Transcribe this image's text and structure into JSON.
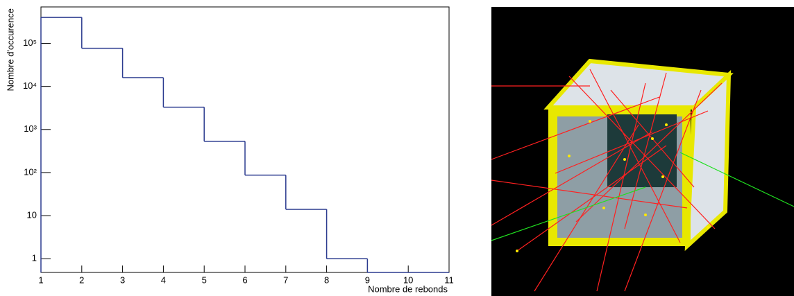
{
  "chart_data": {
    "type": "histogram",
    "x_label": "Nombre de rebonds",
    "y_label": "Nombre d'occurence",
    "bins": [
      1,
      2,
      3,
      4,
      5,
      6,
      7,
      8,
      9,
      10,
      11
    ],
    "counts": [
      400000,
      77000,
      16000,
      3300,
      530,
      87,
      14,
      1,
      0,
      0
    ],
    "color": "#2b3b8f",
    "log_y": true,
    "xlim": [
      1,
      11
    ],
    "xticks": [
      1,
      2,
      3,
      4,
      5,
      6,
      7,
      8,
      9,
      10,
      11
    ],
    "ylim": [
      0.48,
      700000
    ],
    "yticks": [
      1,
      10,
      {
        "value": 100,
        "label": "10²"
      },
      {
        "value": 1000,
        "label": "10³"
      },
      {
        "value": 10000,
        "label": "10⁴"
      },
      {
        "value": 100000,
        "label": "10⁵"
      }
    ]
  }
}
